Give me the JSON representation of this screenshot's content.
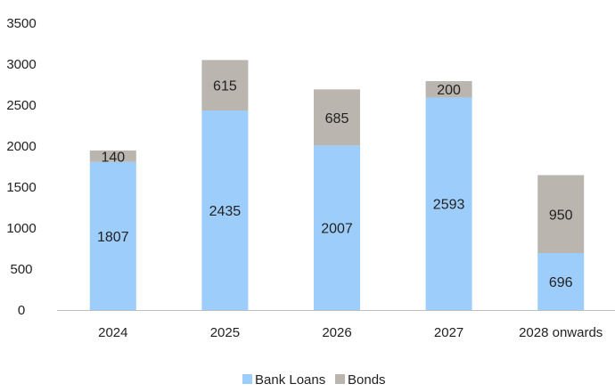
{
  "chart_data": {
    "type": "bar",
    "stacked": true,
    "categories": [
      "2024",
      "2025",
      "2026",
      "2027",
      "2028 onwards"
    ],
    "series": [
      {
        "name": "Bank Loans",
        "values": [
          1807,
          2435,
          2007,
          2593,
          696
        ],
        "color": "#9DCDFB"
      },
      {
        "name": "Bonds",
        "values": [
          140,
          615,
          685,
          200,
          950
        ],
        "color": "#BAB6AF"
      }
    ],
    "data_labels": [
      [
        "1807",
        "2435",
        "2007",
        "2593",
        "696"
      ],
      [
        "140",
        "615",
        "685",
        "200",
        "950"
      ]
    ],
    "yticks": [
      "0",
      "500",
      "1000",
      "1500",
      "2000",
      "2500",
      "3000",
      "3500"
    ],
    "ylim": [
      0,
      3500
    ],
    "grid": false,
    "legend": {
      "position": "bottom",
      "entries": [
        "Bank Loans",
        "Bonds"
      ]
    },
    "title": "",
    "xlabel": "",
    "ylabel": ""
  }
}
